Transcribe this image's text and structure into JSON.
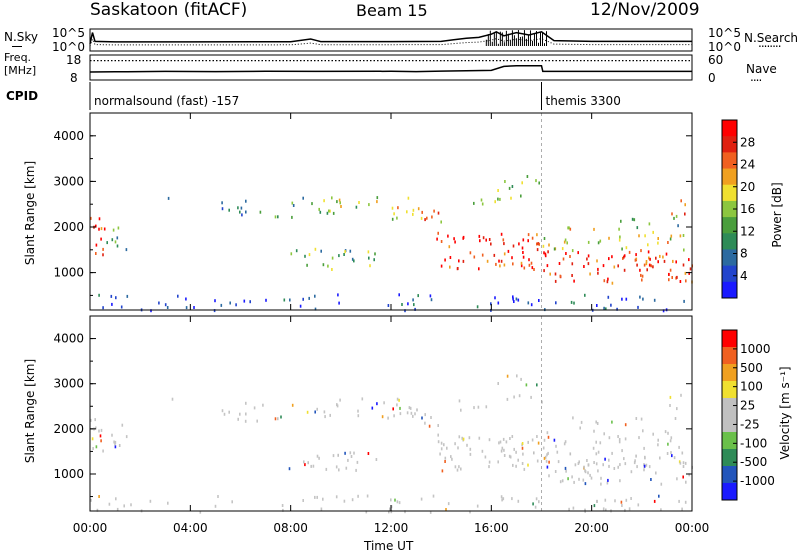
{
  "header": {
    "station": "Saskatoon (fitACF)",
    "beam": "Beam 15",
    "date": "12/Nov/2009"
  },
  "colors": {
    "power_scale": [
      "#1a1aff",
      "#2244cc",
      "#2c6aa0",
      "#2e8b57",
      "#4a9e3c",
      "#8cc63f",
      "#f0e030",
      "#f0a020",
      "#f06020",
      "#e02010",
      "#ff0000"
    ],
    "velocity_scale": [
      "#1a1aff",
      "#2255bb",
      "#2e8b57",
      "#6ac04a",
      "#c0c0c0",
      "#c0c0c0",
      "#f0e030",
      "#f0a020",
      "#f06020",
      "#ff0000"
    ]
  },
  "chart_data": [
    {
      "type": "line",
      "panel": "noise",
      "ylabel": "N.Sky",
      "ylabel_right": "N.Search",
      "legend_right": "........",
      "yticks_left": [
        "10^5",
        "10^0"
      ],
      "yticks_right": [
        "10^5",
        "10^0"
      ],
      "x_hours": [
        0,
        0.1,
        0.2,
        1,
        4,
        8,
        8.8,
        9,
        9.2,
        12,
        14,
        14.5,
        15,
        15.5,
        16,
        16.2,
        16.5,
        17,
        17.5,
        18,
        18.5,
        20,
        22,
        24
      ],
      "n_sky": [
        0.2,
        0.9,
        0.35,
        0.32,
        0.32,
        0.33,
        0.5,
        0.42,
        0.34,
        0.34,
        0.35,
        0.45,
        0.55,
        0.6,
        0.8,
        0.95,
        0.7,
        0.9,
        0.75,
        0.95,
        0.4,
        0.35,
        0.35,
        0.35
      ],
      "xlim": [
        0,
        24
      ]
    },
    {
      "type": "line",
      "panel": "frequency",
      "ylabel": "Freq.\n[MHz]",
      "ylabel_right": "Nave",
      "legend_right": "....",
      "yticks_left": [
        "18",
        "8"
      ],
      "yticks_right": [
        "60",
        "0"
      ],
      "x_hours": [
        0,
        1,
        3,
        5,
        7,
        9,
        12,
        13,
        14,
        15,
        16,
        16.5,
        17,
        18,
        18.05,
        20,
        22,
        24
      ],
      "frequency_mhz": [
        10.5,
        10.6,
        10.8,
        10.7,
        10.9,
        10.8,
        10.9,
        10.7,
        11,
        11.2,
        11.4,
        13.6,
        14,
        14,
        10.8,
        10.8,
        10.8,
        10.8
      ],
      "nave_dotted": 48,
      "xlim": [
        0,
        24
      ]
    },
    {
      "type": "table",
      "panel": "cpid",
      "ylabel": "CPID",
      "segments": [
        {
          "label": "normalsound (fast) -157",
          "start": 0,
          "end": 18
        },
        {
          "label": "themis 3300",
          "start": 18,
          "end": 24
        }
      ]
    },
    {
      "type": "heatmap",
      "panel": "power",
      "ylabel": "Slant Range [km]",
      "colorbar_label": "Power [dB]",
      "colorbar_ticks": [
        "28",
        "24",
        "20",
        "16",
        "12",
        "8",
        "4"
      ],
      "yticks": [
        "4000",
        "3000",
        "2000",
        "1000"
      ],
      "ylim": [
        180,
        4500
      ],
      "xlim": [
        0,
        24
      ],
      "clim": [
        0,
        30
      ]
    },
    {
      "type": "heatmap",
      "panel": "velocity",
      "ylabel": "Slant Range [km]",
      "colorbar_label": "Velocity [m s⁻¹]",
      "colorbar_ticks": [
        "1000",
        "500",
        "100",
        "25",
        "-25",
        "-100",
        "-500",
        "-1000"
      ],
      "yticks": [
        "4000",
        "3000",
        "2000",
        "1000"
      ],
      "ylim": [
        180,
        4500
      ],
      "xlim": [
        0,
        24
      ]
    }
  ],
  "xaxis": {
    "ticks": [
      "00:00",
      "04:00",
      "08:00",
      "12:00",
      "16:00",
      "20:00",
      "00:00"
    ],
    "tick_hours": [
      0,
      4,
      8,
      12,
      16,
      20,
      24
    ],
    "label": "Time UT"
  }
}
